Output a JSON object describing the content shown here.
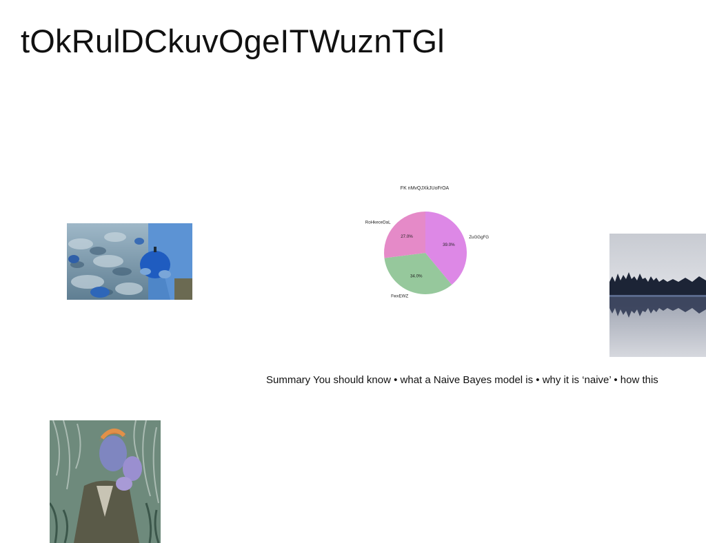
{
  "slide": {
    "title": "tOkRulDCkuvOgeITWuznTGl",
    "summary": "Summary You should know • what a Naive Bayes model is • why it is ‘naive’ • how this"
  },
  "chart_data": {
    "type": "pie",
    "title": "FK nMvQJXkJUoFrOA",
    "slices": [
      {
        "label": "ZuGGgFG",
        "value": 39.0,
        "pct_label": "39.0%",
        "color": "#dd88e6"
      },
      {
        "label": "FwxEWZ",
        "value": 34.0,
        "pct_label": "34.0%",
        "color": "#96c89c"
      },
      {
        "label": "RoHkeceDaL",
        "value": 27.0,
        "pct_label": "27.0%",
        "color": "#e58ac8"
      }
    ],
    "start_angle_deg": 90,
    "direction": "clockwise",
    "legend": "none"
  },
  "images": {
    "pumpkin": {
      "icon": "pumpkin-field-photo"
    },
    "lake": {
      "icon": "lake-forest-photo"
    },
    "portrait": {
      "icon": "person-in-grass-photo"
    }
  }
}
